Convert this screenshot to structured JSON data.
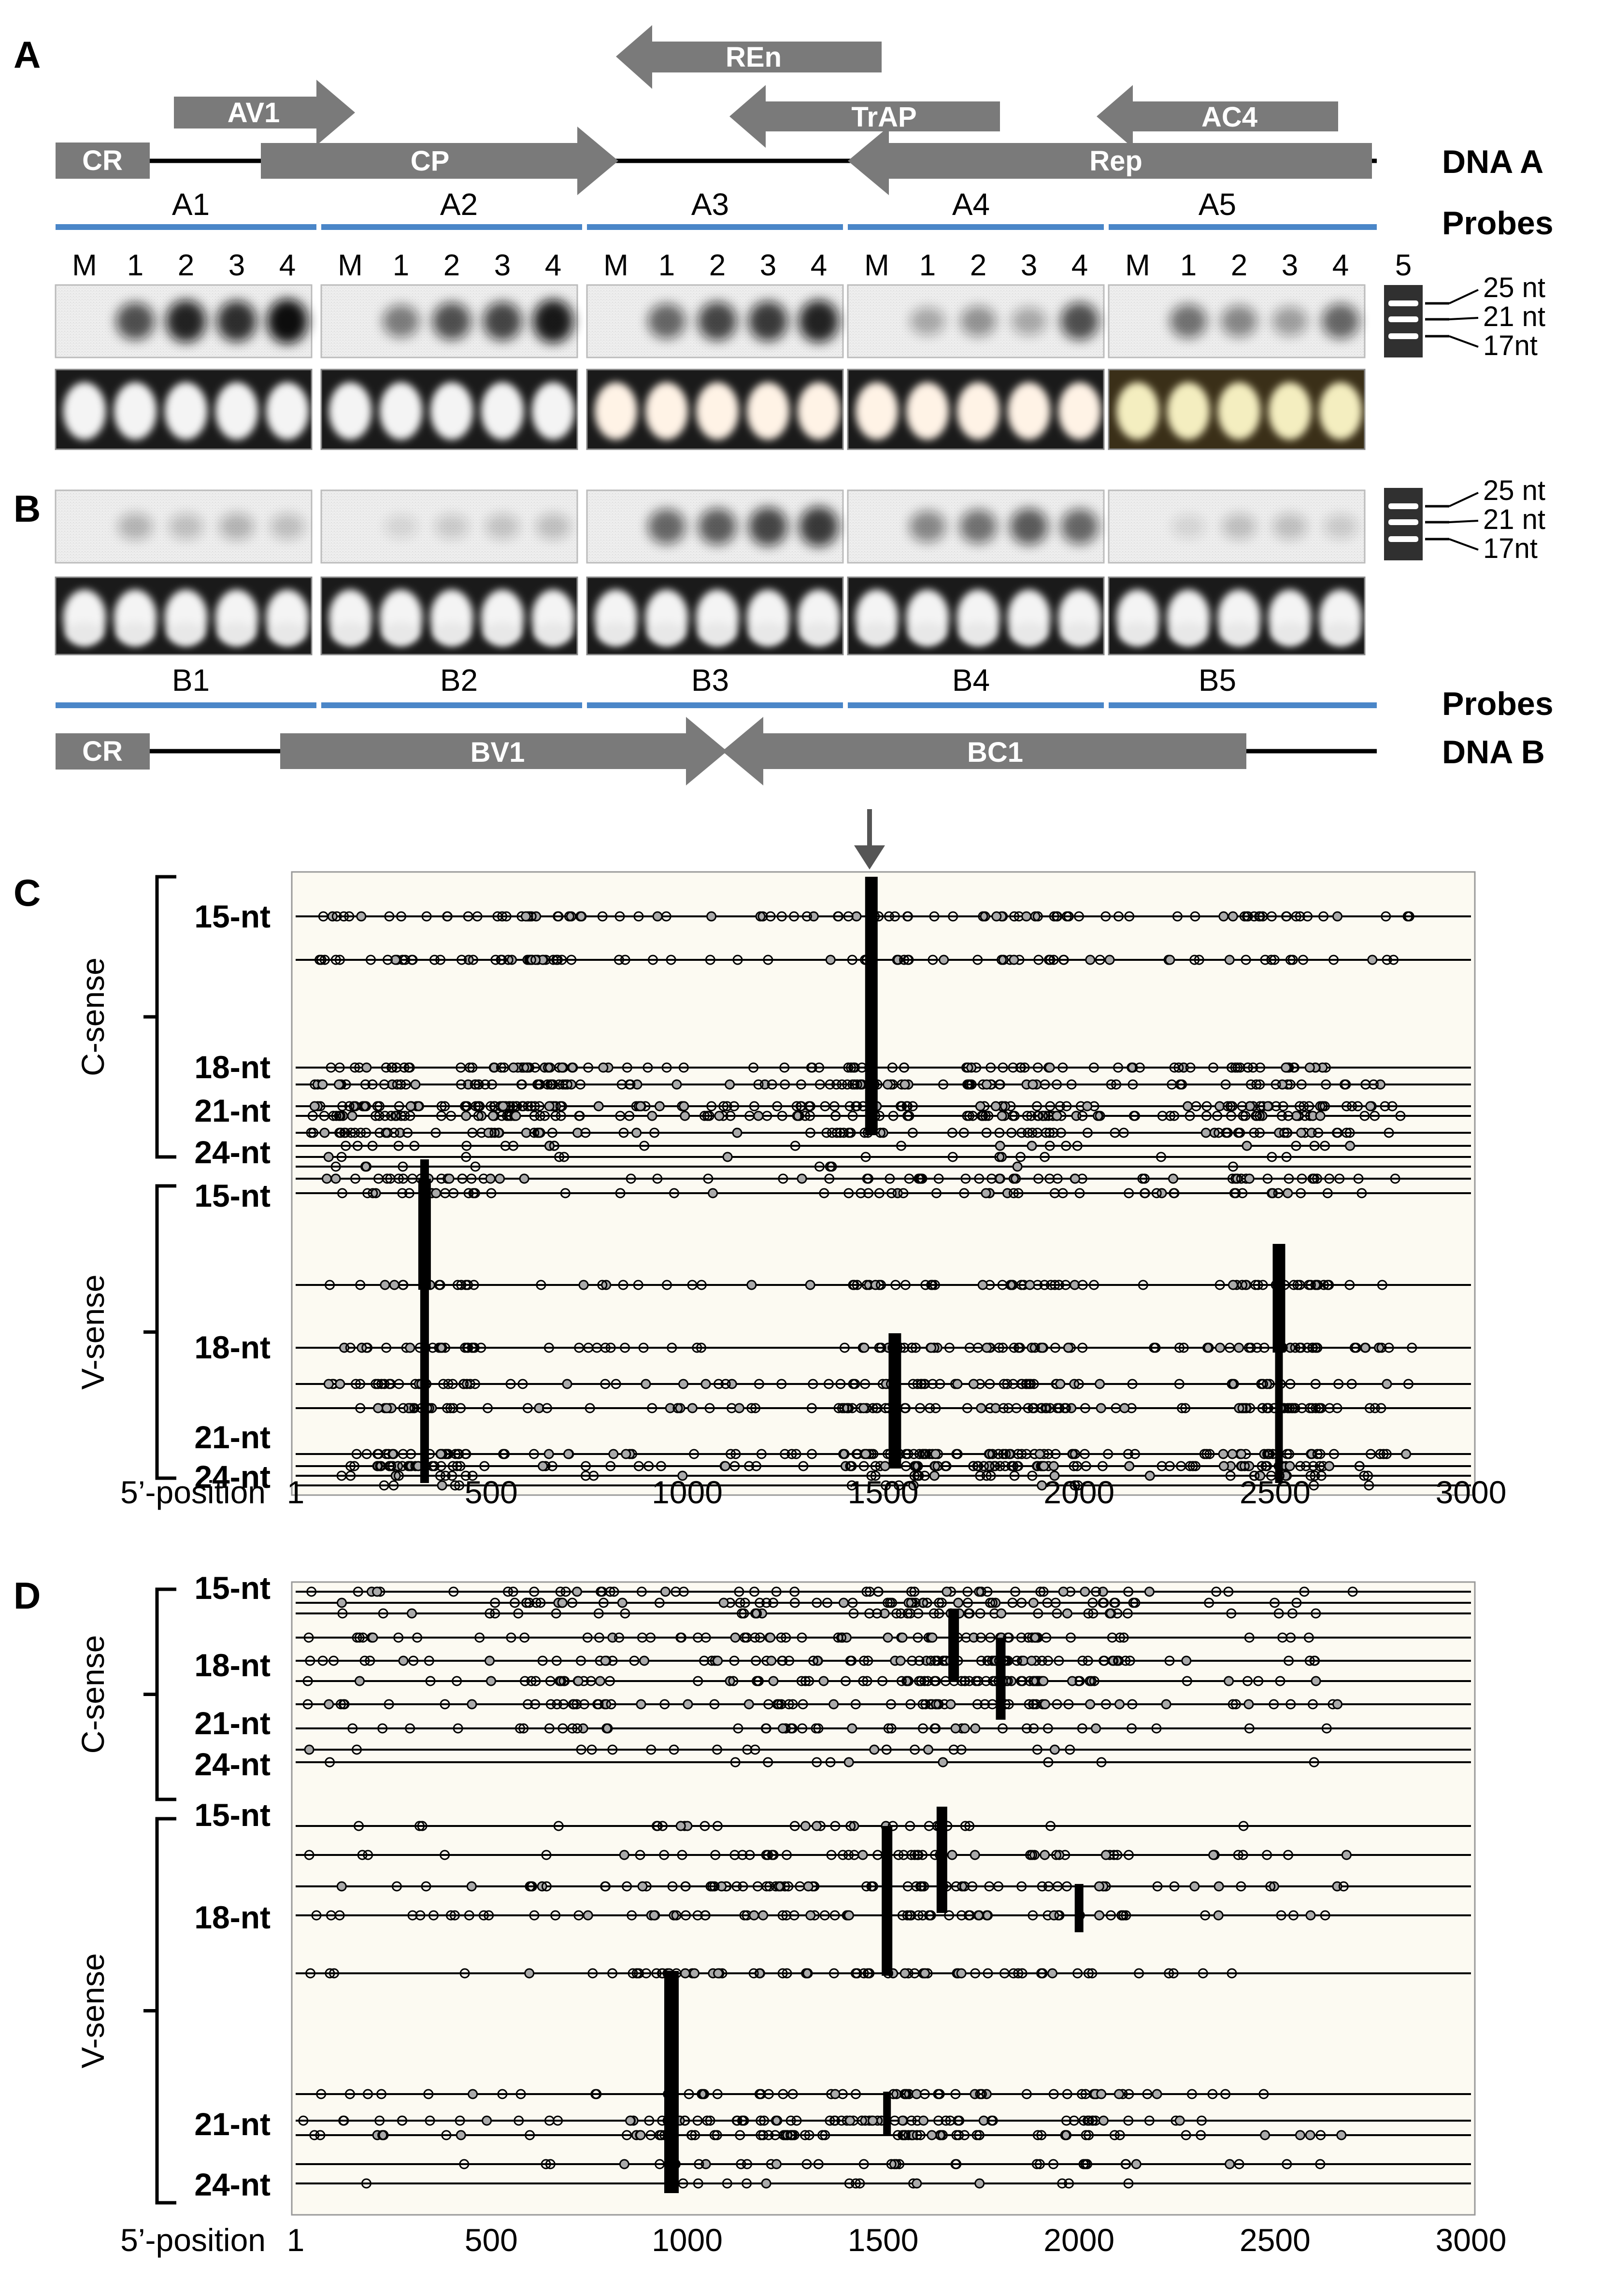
{
  "panels": {
    "A": "A",
    "B": "B",
    "C": "C",
    "D": "D"
  },
  "dnaA": {
    "title": "DNA A",
    "genes": [
      {
        "name": "CR"
      },
      {
        "name": "AV1"
      },
      {
        "name": "CP"
      },
      {
        "name": "REn"
      },
      {
        "name": "TrAP"
      },
      {
        "name": "AC4"
      },
      {
        "name": "Rep"
      }
    ],
    "probes_label": "Probes",
    "probes": [
      "A1",
      "A2",
      "A3",
      "A4",
      "A5"
    ],
    "lanes": [
      "M",
      "1",
      "2",
      "3",
      "4"
    ],
    "marker_lane": "5",
    "size_markers": [
      "25 nt",
      "21 nt",
      "17nt"
    ]
  },
  "dnaB": {
    "title": "DNA B",
    "genes": [
      {
        "name": "CR"
      },
      {
        "name": "BV1"
      },
      {
        "name": "BC1"
      }
    ],
    "probes_label": "Probes",
    "probes": [
      "B1",
      "B2",
      "B3",
      "B4",
      "B5"
    ],
    "size_markers": [
      "25 nt",
      "21 nt",
      "17nt"
    ]
  },
  "colors": {
    "gene_arrow": "#7a7a7a",
    "probe_line": "#4a86c8",
    "plot_background": "#fcfaf2"
  },
  "chart_data": [
    {
      "type": "scatter",
      "panel": "C",
      "xlabel": "5’-position",
      "x_ticks": [
        "1",
        "500",
        "1000",
        "1500",
        "2000",
        "2500",
        "3000"
      ],
      "xlim": [
        1,
        3000
      ],
      "groups": [
        {
          "name": "C-sense",
          "size_labels": [
            "15-nt",
            "18-nt",
            "21-nt",
            "24-nt"
          ],
          "rows": 10
        },
        {
          "name": "V-sense",
          "size_labels": [
            "15-nt",
            "18-nt",
            "21-nt",
            "24-nt"
          ],
          "rows": 10
        }
      ],
      "hotspots": [
        {
          "sense": "C-sense",
          "position": 1470
        },
        {
          "sense": "V-sense",
          "position": 330
        },
        {
          "sense": "V-sense",
          "position": 1530
        },
        {
          "sense": "V-sense",
          "position": 2510
        }
      ],
      "clusters": [
        {
          "sense": "C-sense",
          "positions": [
            170,
            560,
            620,
            1440,
            1840,
            2500
          ]
        },
        {
          "sense": "V-sense",
          "positions": [
            330,
            1530,
            1860,
            2510
          ]
        }
      ]
    },
    {
      "type": "scatter",
      "panel": "D",
      "xlabel": "5’-position",
      "x_ticks": [
        "1",
        "500",
        "1000",
        "1500",
        "2000",
        "2500",
        "3000"
      ],
      "xlim": [
        1,
        3000
      ],
      "groups": [
        {
          "name": "C-sense",
          "size_labels": [
            "15-nt",
            "18-nt",
            "21-nt",
            "24-nt"
          ],
          "rows": 10
        },
        {
          "name": "V-sense",
          "size_labels": [
            "15-nt",
            "18-nt",
            "21-nt",
            "24-nt"
          ],
          "rows": 10
        }
      ],
      "hotspots": [
        {
          "sense": "C-sense",
          "position": 1680
        },
        {
          "sense": "C-sense",
          "position": 1800
        },
        {
          "sense": "V-sense",
          "position": 950
        },
        {
          "sense": "V-sense",
          "position": 1500
        },
        {
          "sense": "V-sense",
          "position": 1650
        },
        {
          "sense": "V-sense",
          "position": 2000
        }
      ],
      "clusters": [
        {
          "sense": "C-sense",
          "positions": [
            680,
            1240,
            1520,
            1690,
            1800,
            2000
          ]
        },
        {
          "sense": "V-sense",
          "positions": [
            960,
            1250,
            1500,
            1650,
            2000
          ]
        }
      ]
    }
  ]
}
